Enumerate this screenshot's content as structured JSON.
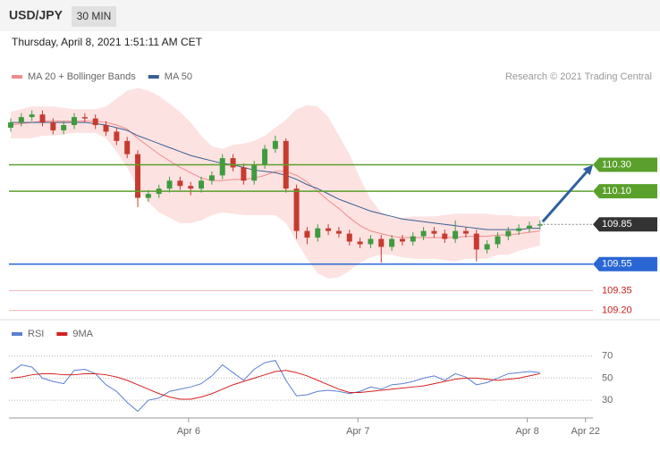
{
  "chart_data": [
    {
      "type": "candlestick",
      "title": "USD/JPY",
      "interval": "30 MIN",
      "subtitle": "Thursday, April 8, 2021 1:51:11 AM CET",
      "credit": "Research © 2021 Trading Central",
      "x": [
        0,
        1,
        2,
        3,
        4,
        5,
        6,
        7,
        8,
        9,
        10,
        11,
        12,
        13,
        14,
        15,
        16,
        17,
        18,
        19,
        20,
        21,
        22,
        23,
        24,
        25,
        26,
        27,
        28,
        29,
        30,
        31,
        32,
        33,
        34,
        35,
        36,
        37,
        38,
        39,
        40,
        41,
        42,
        43,
        44,
        45,
        46,
        47,
        48,
        49,
        50
      ],
      "open": [
        110.58,
        110.62,
        110.66,
        110.68,
        110.62,
        110.56,
        110.6,
        110.66,
        110.65,
        110.6,
        110.55,
        110.48,
        110.38,
        110.05,
        110.08,
        110.12,
        110.18,
        110.14,
        110.12,
        110.18,
        110.22,
        110.35,
        110.28,
        110.18,
        110.3,
        110.42,
        110.48,
        110.12,
        109.8,
        109.75,
        109.82,
        109.8,
        109.78,
        109.72,
        109.7,
        109.74,
        109.68,
        109.74,
        109.72,
        109.76,
        109.8,
        109.78,
        109.74,
        109.8,
        109.78,
        109.66,
        109.7,
        109.76,
        109.8,
        109.82,
        109.84
      ],
      "high": [
        110.65,
        110.69,
        110.71,
        110.71,
        110.65,
        110.63,
        110.69,
        110.69,
        110.68,
        110.63,
        110.58,
        110.51,
        110.41,
        110.11,
        110.15,
        110.21,
        110.21,
        110.17,
        110.21,
        110.25,
        110.38,
        110.38,
        110.31,
        110.33,
        110.45,
        110.52,
        110.5,
        110.15,
        109.83,
        109.85,
        109.85,
        109.83,
        109.81,
        109.75,
        109.77,
        109.77,
        109.77,
        109.77,
        109.79,
        109.83,
        109.83,
        109.81,
        109.88,
        109.83,
        109.81,
        109.73,
        109.79,
        109.83,
        109.85,
        109.87,
        109.88
      ],
      "low": [
        110.55,
        110.59,
        110.63,
        110.59,
        110.53,
        110.53,
        110.57,
        110.62,
        110.57,
        110.52,
        110.45,
        110.35,
        109.98,
        110.02,
        110.05,
        110.09,
        110.11,
        110.07,
        110.09,
        110.15,
        110.19,
        110.25,
        110.15,
        110.15,
        110.27,
        110.39,
        110.09,
        109.74,
        109.7,
        109.72,
        109.77,
        109.75,
        109.69,
        109.67,
        109.67,
        109.56,
        109.65,
        109.69,
        109.69,
        109.73,
        109.75,
        109.71,
        109.71,
        109.75,
        109.57,
        109.63,
        109.67,
        109.73,
        109.77,
        109.79,
        109.81
      ],
      "close": [
        110.62,
        110.66,
        110.68,
        110.62,
        110.56,
        110.6,
        110.66,
        110.65,
        110.6,
        110.55,
        110.48,
        110.38,
        110.05,
        110.08,
        110.12,
        110.18,
        110.14,
        110.12,
        110.18,
        110.22,
        110.35,
        110.28,
        110.18,
        110.3,
        110.42,
        110.48,
        110.12,
        109.8,
        109.75,
        109.82,
        109.8,
        109.78,
        109.72,
        109.7,
        109.74,
        109.68,
        109.74,
        109.72,
        109.76,
        109.8,
        109.78,
        109.74,
        109.8,
        109.78,
        109.66,
        109.7,
        109.76,
        109.8,
        109.82,
        109.84,
        109.85
      ],
      "up_color": "#3f9b3f",
      "down_color": "#c63a30",
      "series": [
        {
          "name": "MA 20 + Bollinger Bands",
          "color": "#f08c8c",
          "values": [
            110.6,
            110.61,
            110.62,
            110.63,
            110.63,
            110.63,
            110.63,
            110.63,
            110.63,
            110.62,
            110.6,
            110.57,
            110.5,
            110.44,
            110.38,
            110.33,
            110.28,
            110.24,
            110.2,
            110.18,
            110.18,
            110.19,
            110.19,
            110.2,
            110.22,
            110.25,
            110.25,
            110.22,
            110.17,
            110.1,
            110.03,
            109.97,
            109.9,
            109.84,
            109.8,
            109.78,
            109.76,
            109.75,
            109.75,
            109.75,
            109.75,
            109.75,
            109.75,
            109.76,
            109.76,
            109.76,
            109.77,
            109.77,
            109.78,
            109.79,
            109.8
          ]
        },
        {
          "name": "MA 50",
          "color": "#3a5f91",
          "values": [
            110.62,
            110.62,
            110.62,
            110.62,
            110.62,
            110.62,
            110.62,
            110.62,
            110.61,
            110.6,
            110.58,
            110.56,
            110.52,
            110.49,
            110.46,
            110.43,
            110.4,
            110.37,
            110.35,
            110.33,
            110.31,
            110.3,
            110.28,
            110.26,
            110.25,
            110.24,
            110.22,
            110.19,
            110.15,
            110.12,
            110.08,
            110.04,
            110.01,
            109.98,
            109.95,
            109.93,
            109.91,
            109.89,
            109.88,
            109.87,
            109.86,
            109.85,
            109.84,
            109.83,
            109.82,
            109.81,
            109.81,
            109.81,
            109.81,
            109.82,
            109.82
          ]
        }
      ],
      "bands": {
        "color": "#fde2e2",
        "upper": [
          110.7,
          110.72,
          110.74,
          110.74,
          110.74,
          110.73,
          110.72,
          110.72,
          110.72,
          110.74,
          110.8,
          110.86,
          110.88,
          110.86,
          110.82,
          110.76,
          110.7,
          110.62,
          110.52,
          110.44,
          110.42,
          110.45,
          110.46,
          110.48,
          110.52,
          110.58,
          110.64,
          110.72,
          110.75,
          110.74,
          110.66,
          110.52,
          110.38,
          110.2,
          110.04,
          109.94,
          109.9,
          109.9,
          109.91,
          109.91,
          109.91,
          109.92,
          109.93,
          109.93,
          109.93,
          109.93,
          109.92,
          109.92,
          109.91,
          109.91,
          109.91
        ],
        "lower": [
          110.5,
          110.5,
          110.5,
          110.52,
          110.52,
          110.53,
          110.54,
          110.54,
          110.54,
          110.5,
          110.4,
          110.28,
          110.12,
          110.02,
          109.94,
          109.9,
          109.86,
          109.86,
          109.88,
          109.92,
          109.94,
          109.93,
          109.92,
          109.92,
          109.92,
          109.92,
          109.86,
          109.72,
          109.59,
          109.48,
          109.44,
          109.45,
          109.5,
          109.56,
          109.6,
          109.62,
          109.62,
          109.6,
          109.59,
          109.59,
          109.59,
          109.58,
          109.57,
          109.59,
          109.59,
          109.59,
          109.62,
          109.62,
          109.65,
          109.67,
          109.69
        ]
      },
      "levels": [
        {
          "value": 110.3,
          "label": "110.30",
          "color": "#5aa02c",
          "style": "box"
        },
        {
          "value": 110.1,
          "label": "110.10",
          "color": "#5aa02c",
          "style": "box"
        },
        {
          "value": 109.85,
          "label": "109.85",
          "color": "#333333",
          "style": "current"
        },
        {
          "value": 109.55,
          "label": "109.55",
          "color": "#2a67d4",
          "style": "box"
        },
        {
          "value": 109.35,
          "label": "109.35",
          "color": "#c81e1e",
          "style": "text"
        },
        {
          "value": 109.2,
          "label": "109.20",
          "color": "#c81e1e",
          "style": "text"
        }
      ],
      "arrow_color": "#2f5f9e",
      "xlim": [
        0,
        55
      ],
      "ylim": [
        109.15,
        110.87
      ]
    },
    {
      "type": "line",
      "x": [
        0,
        1,
        2,
        3,
        4,
        5,
        6,
        7,
        8,
        9,
        10,
        11,
        12,
        13,
        14,
        15,
        16,
        17,
        18,
        19,
        20,
        21,
        22,
        23,
        24,
        25,
        26,
        27,
        28,
        29,
        30,
        31,
        32,
        33,
        34,
        35,
        36,
        37,
        38,
        39,
        40,
        41,
        42,
        43,
        44,
        45,
        46,
        47,
        48,
        49,
        50
      ],
      "series": [
        {
          "name": "RSI",
          "color": "#5b7fd0",
          "values": [
            55,
            62,
            60,
            50,
            47,
            45,
            57,
            58,
            54,
            44,
            38,
            28,
            20,
            30,
            32,
            38,
            40,
            42,
            45,
            52,
            62,
            55,
            48,
            58,
            64,
            66,
            48,
            34,
            35,
            38,
            39,
            38,
            36,
            38,
            42,
            40,
            44,
            45,
            47,
            50,
            52,
            48,
            54,
            51,
            44,
            46,
            50,
            54,
            55,
            56,
            55
          ]
        },
        {
          "name": "9MA",
          "color": "#d42020",
          "values": [
            50,
            51,
            53,
            54,
            54,
            53,
            53,
            54,
            54,
            53,
            51,
            48,
            44,
            40,
            36,
            33,
            31,
            31,
            33,
            36,
            40,
            44,
            47,
            50,
            53,
            56,
            57,
            55,
            52,
            48,
            44,
            40,
            37,
            37,
            38,
            39,
            40,
            41,
            42,
            43,
            45,
            47,
            49,
            50,
            50,
            49,
            48,
            49,
            50,
            52,
            54
          ]
        }
      ],
      "xlim": [
        0,
        55
      ],
      "ylim": [
        14,
        81
      ],
      "yticks": [
        30,
        50,
        70
      ],
      "xticks": [
        {
          "value": 16.8,
          "label": "Apr 6"
        },
        {
          "value": 32.8,
          "label": "Apr 7"
        },
        {
          "value": 48.8,
          "label": "Apr 8"
        },
        {
          "value": 54.3,
          "label": "Apr 22"
        }
      ],
      "grid": true
    }
  ]
}
